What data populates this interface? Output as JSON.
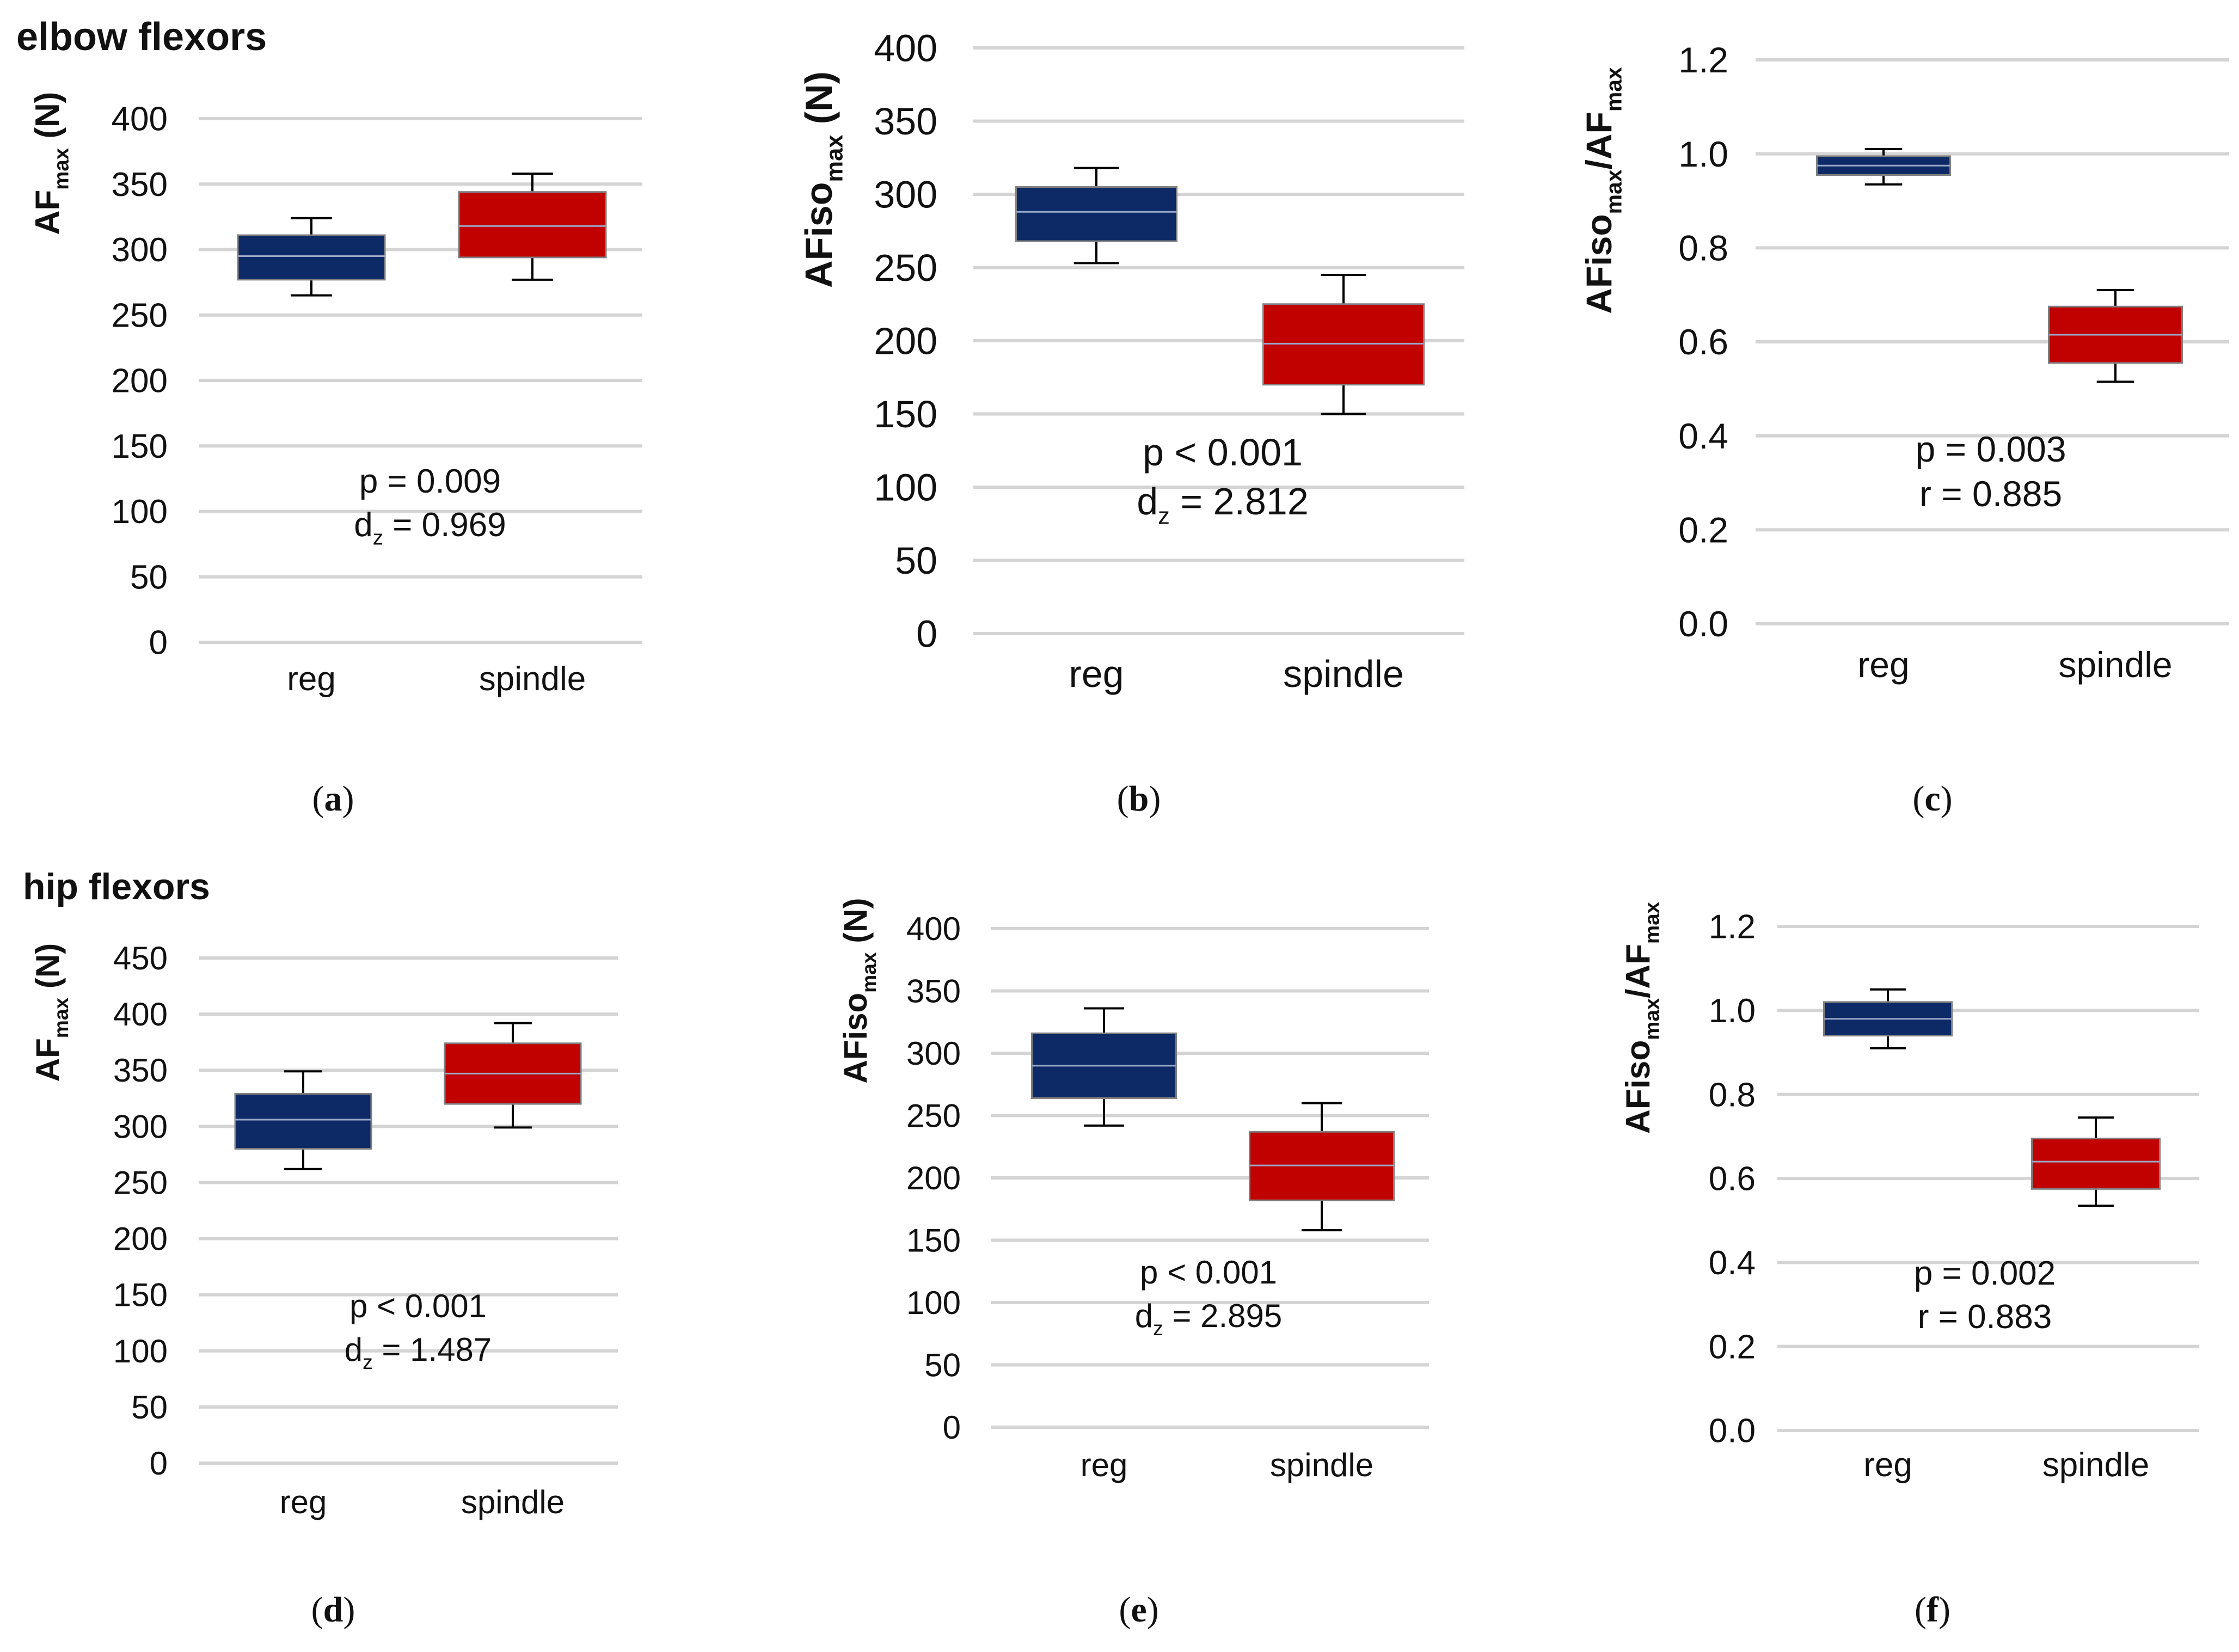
{
  "row_titles": {
    "top": "elbow flexors",
    "bottom": "hip flexors"
  },
  "colors": {
    "reg": "#0d2a66",
    "spindle": "#c10000",
    "grid": "#d4d4d4",
    "whisker": "#000000",
    "median": "#9aa8c8"
  },
  "chart_data": [
    {
      "panel": "a",
      "caption": "a",
      "type": "box",
      "ylabel": {
        "main": "AF",
        "sub": "max",
        "unit": " (N)"
      },
      "ylim": [
        0,
        400
      ],
      "yticks": [
        "0",
        "50",
        "100",
        "150",
        "200",
        "250",
        "300",
        "350",
        "400"
      ],
      "categories": [
        "reg",
        "spindle"
      ],
      "boxes": [
        {
          "name": "reg",
          "min": 265,
          "q1": 277,
          "median": 295,
          "q3": 311,
          "max": 324
        },
        {
          "name": "spindle",
          "min": 277,
          "q1": 294,
          "median": 318,
          "q3": 344,
          "max": 358
        }
      ],
      "annotation": [
        {
          "text": "p = 0.009"
        },
        {
          "pre": "d",
          "sub": "z",
          "post": " = 0.969"
        }
      ]
    },
    {
      "panel": "b",
      "caption": "b",
      "type": "box",
      "ylabel": {
        "main": "AFiso",
        "sub": "max",
        "unit": " (N)"
      },
      "ylim": [
        0,
        400
      ],
      "yticks": [
        "0",
        "50",
        "100",
        "150",
        "200",
        "250",
        "300",
        "350",
        "400"
      ],
      "categories": [
        "reg",
        "spindle"
      ],
      "boxes": [
        {
          "name": "reg",
          "min": 253,
          "q1": 268,
          "median": 288,
          "q3": 305,
          "max": 318
        },
        {
          "name": "spindle",
          "min": 150,
          "q1": 170,
          "median": 198,
          "q3": 225,
          "max": 245
        }
      ],
      "annotation": [
        {
          "text": "p < 0.001"
        },
        {
          "pre": "d",
          "sub": "z",
          "post": " = 2.812"
        }
      ]
    },
    {
      "panel": "c",
      "caption": "c",
      "type": "box",
      "ylabel": {
        "main": "AFiso",
        "sub": "max",
        "main2": "/AF",
        "sub2": "max",
        "unit": ""
      },
      "ylim": [
        0,
        1.2
      ],
      "yticks": [
        "0.0",
        "0.2",
        "0.4",
        "0.6",
        "0.8",
        "1.0",
        "1.2"
      ],
      "categories": [
        "reg",
        "spindle"
      ],
      "boxes": [
        {
          "name": "reg",
          "min": 0.935,
          "q1": 0.955,
          "median": 0.975,
          "q3": 0.995,
          "max": 1.01
        },
        {
          "name": "spindle",
          "min": 0.515,
          "q1": 0.555,
          "median": 0.615,
          "q3": 0.675,
          "max": 0.71
        }
      ],
      "annotation": [
        {
          "text": "p = 0.003"
        },
        {
          "text": "r = 0.885"
        }
      ]
    },
    {
      "panel": "d",
      "caption": "d",
      "type": "box",
      "ylabel": {
        "main": "AF",
        "sub": "max",
        "unit": " (N)"
      },
      "ylim": [
        0,
        450
      ],
      "yticks": [
        "0",
        "50",
        "100",
        "150",
        "200",
        "250",
        "300",
        "350",
        "400",
        "450"
      ],
      "categories": [
        "reg",
        "spindle"
      ],
      "boxes": [
        {
          "name": "reg",
          "min": 262,
          "q1": 280,
          "median": 306,
          "q3": 329,
          "max": 349
        },
        {
          "name": "spindle",
          "min": 299,
          "q1": 320,
          "median": 347,
          "q3": 374,
          "max": 392
        }
      ],
      "annotation": [
        {
          "text": "p < 0.001"
        },
        {
          "pre": "d",
          "sub": "z",
          "post": " = 1.487"
        }
      ]
    },
    {
      "panel": "e",
      "caption": "e",
      "type": "box",
      "ylabel": {
        "main": "AFiso",
        "sub": "max",
        "unit": " (N)"
      },
      "ylim": [
        0,
        400
      ],
      "yticks": [
        "0",
        "50",
        "100",
        "150",
        "200",
        "250",
        "300",
        "350",
        "400"
      ],
      "categories": [
        "reg",
        "spindle"
      ],
      "boxes": [
        {
          "name": "reg",
          "min": 242,
          "q1": 264,
          "median": 290,
          "q3": 316,
          "max": 336
        },
        {
          "name": "spindle",
          "min": 158,
          "q1": 182,
          "median": 210,
          "q3": 237,
          "max": 260
        }
      ],
      "annotation": [
        {
          "text": "p < 0.001"
        },
        {
          "pre": "d",
          "sub": "z",
          "post": " = 2.895"
        }
      ]
    },
    {
      "panel": "f",
      "caption": "f",
      "type": "box",
      "ylabel": {
        "main": "AFiso",
        "sub": "max",
        "main2": "/AF",
        "sub2": "max",
        "unit": ""
      },
      "ylim": [
        0,
        1.2
      ],
      "yticks": [
        "0.0",
        "0.2",
        "0.4",
        "0.6",
        "0.8",
        "1.0",
        "1.2"
      ],
      "categories": [
        "reg",
        "spindle"
      ],
      "boxes": [
        {
          "name": "reg",
          "min": 0.91,
          "q1": 0.94,
          "median": 0.98,
          "q3": 1.02,
          "max": 1.05
        },
        {
          "name": "spindle",
          "min": 0.535,
          "q1": 0.575,
          "median": 0.64,
          "q3": 0.695,
          "max": 0.745
        }
      ],
      "annotation": [
        {
          "text": "p = 0.002"
        },
        {
          "text": "r = 0.883"
        }
      ]
    }
  ]
}
